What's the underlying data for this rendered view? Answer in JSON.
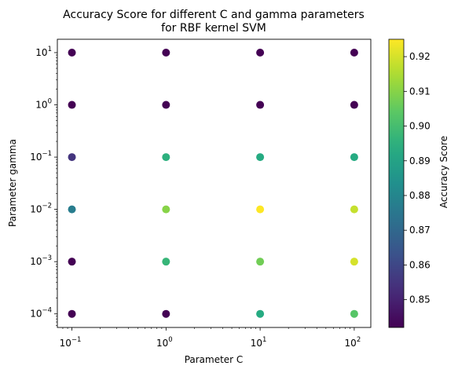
{
  "chart_data": {
    "type": "scatter",
    "title": [
      "Accuracy Score for different C and gamma parameters",
      "for RBF kernel SVM"
    ],
    "xlabel": "Parameter C",
    "ylabel": "Parameter gamma",
    "colorbar_label": "Accuracy Score",
    "x_scale": "log",
    "y_scale": "log",
    "xlim": [
      0.07,
      150
    ],
    "ylim": [
      5.5e-05,
      18
    ],
    "x_ticks": [
      {
        "base": "10",
        "exp": "−1",
        "value": 0.1
      },
      {
        "base": "10",
        "exp": "0",
        "value": 1
      },
      {
        "base": "10",
        "exp": "1",
        "value": 10
      },
      {
        "base": "10",
        "exp": "2",
        "value": 100
      }
    ],
    "y_ticks": [
      {
        "base": "10",
        "exp": "−4",
        "value": 0.0001
      },
      {
        "base": "10",
        "exp": "−3",
        "value": 0.001
      },
      {
        "base": "10",
        "exp": "−2",
        "value": 0.01
      },
      {
        "base": "10",
        "exp": "−1",
        "value": 0.1
      },
      {
        "base": "10",
        "exp": "0",
        "value": 1
      },
      {
        "base": "10",
        "exp": "1",
        "value": 10
      }
    ],
    "colormap": "viridis",
    "color_range": [
      0.842,
      0.925
    ],
    "colorbar_ticks": [
      "0.85",
      "0.86",
      "0.87",
      "0.88",
      "0.89",
      "0.90",
      "0.91",
      "0.92"
    ],
    "colorbar_tick_values": [
      0.85,
      0.86,
      0.87,
      0.88,
      0.89,
      0.9,
      0.91,
      0.92
    ],
    "points": [
      {
        "C": 0.1,
        "gamma": 10,
        "score": 0.842
      },
      {
        "C": 0.1,
        "gamma": 1,
        "score": 0.842
      },
      {
        "C": 0.1,
        "gamma": 0.1,
        "score": 0.855
      },
      {
        "C": 0.1,
        "gamma": 0.01,
        "score": 0.877
      },
      {
        "C": 0.1,
        "gamma": 0.001,
        "score": 0.842
      },
      {
        "C": 0.1,
        "gamma": 0.0001,
        "score": 0.842
      },
      {
        "C": 1,
        "gamma": 10,
        "score": 0.842
      },
      {
        "C": 1,
        "gamma": 1,
        "score": 0.842
      },
      {
        "C": 1,
        "gamma": 0.1,
        "score": 0.895
      },
      {
        "C": 1,
        "gamma": 0.01,
        "score": 0.91
      },
      {
        "C": 1,
        "gamma": 0.001,
        "score": 0.897
      },
      {
        "C": 1,
        "gamma": 0.0001,
        "score": 0.842
      },
      {
        "C": 10,
        "gamma": 10,
        "score": 0.842
      },
      {
        "C": 10,
        "gamma": 1,
        "score": 0.842
      },
      {
        "C": 10,
        "gamma": 0.1,
        "score": 0.893
      },
      {
        "C": 10,
        "gamma": 0.01,
        "score": 0.925
      },
      {
        "C": 10,
        "gamma": 0.001,
        "score": 0.907
      },
      {
        "C": 10,
        "gamma": 0.0001,
        "score": 0.893
      },
      {
        "C": 100,
        "gamma": 10,
        "score": 0.842
      },
      {
        "C": 100,
        "gamma": 1,
        "score": 0.842
      },
      {
        "C": 100,
        "gamma": 0.1,
        "score": 0.893
      },
      {
        "C": 100,
        "gamma": 0.01,
        "score": 0.918
      },
      {
        "C": 100,
        "gamma": 0.001,
        "score": 0.92
      },
      {
        "C": 100,
        "gamma": 0.0001,
        "score": 0.903
      }
    ]
  }
}
